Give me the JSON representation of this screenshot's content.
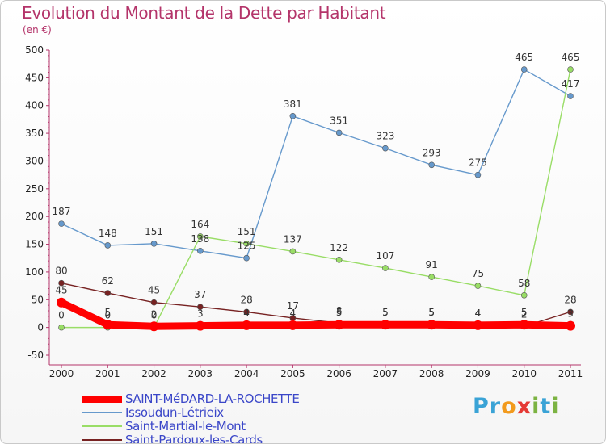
{
  "title": "Evolution du Montant de la Dette par Habitant",
  "subtitle": "(en €)",
  "brand": "Proxiti",
  "chart_data": {
    "type": "line",
    "title": "Evolution du Montant de la Dette par Habitant",
    "ylabel": "(en €)",
    "xlabel": "",
    "x": [
      "2000",
      "2001",
      "2002",
      "2003",
      "2004",
      "2005",
      "2006",
      "2007",
      "2008",
      "2009",
      "2010",
      "2011"
    ],
    "ylim": [
      -50,
      500
    ],
    "yticks": [
      -50,
      0,
      50,
      100,
      150,
      200,
      250,
      300,
      350,
      400,
      450,
      500
    ],
    "grid": false,
    "legend_position": "bottom-left",
    "series": [
      {
        "name": "SAINT-MéDARD-LA-ROCHETTE",
        "color": "#ff0000",
        "values": [
          45,
          5,
          2,
          3,
          4,
          4,
          5,
          5,
          5,
          4,
          5,
          3
        ],
        "labels": [
          "45",
          "5",
          "2",
          "3",
          "4",
          "4",
          "5",
          "5",
          "5",
          "4",
          "5",
          "3"
        ]
      },
      {
        "name": "Issoudun-Létrieix",
        "color": "#6699cc",
        "values": [
          187,
          148,
          151,
          138,
          125,
          381,
          351,
          323,
          293,
          275,
          465,
          417
        ],
        "labels": [
          "187",
          "148",
          "151",
          "138",
          "125",
          "381",
          "351",
          "323",
          "293",
          "275",
          "465",
          "417"
        ]
      },
      {
        "name": "Saint-Martial-le-Mont",
        "color": "#99dd66",
        "values": [
          0,
          0,
          0,
          164,
          151,
          137,
          122,
          107,
          91,
          75,
          58,
          465
        ],
        "labels": [
          "0",
          "0",
          "0",
          "164",
          "151",
          "137",
          "122",
          "107",
          "91",
          "75",
          "58",
          "465"
        ]
      },
      {
        "name": "Saint-Pardoux-les-Cards",
        "color": "#772222",
        "values": [
          80,
          62,
          45,
          37,
          28,
          17,
          8,
          5,
          5,
          4,
          2,
          28
        ],
        "labels": [
          "80",
          "62",
          "45",
          "37",
          "28",
          "17",
          "8",
          "5",
          "5",
          "4",
          "2",
          "28"
        ]
      }
    ],
    "brand_colors": {
      "P": "#3aa3d6",
      "r": "#3aa3d6",
      "o": "#f29a1d",
      "x": "#e53935",
      "i": "#7cb342",
      "t": "#3aa3d6",
      "i2": "#7cb342"
    }
  }
}
